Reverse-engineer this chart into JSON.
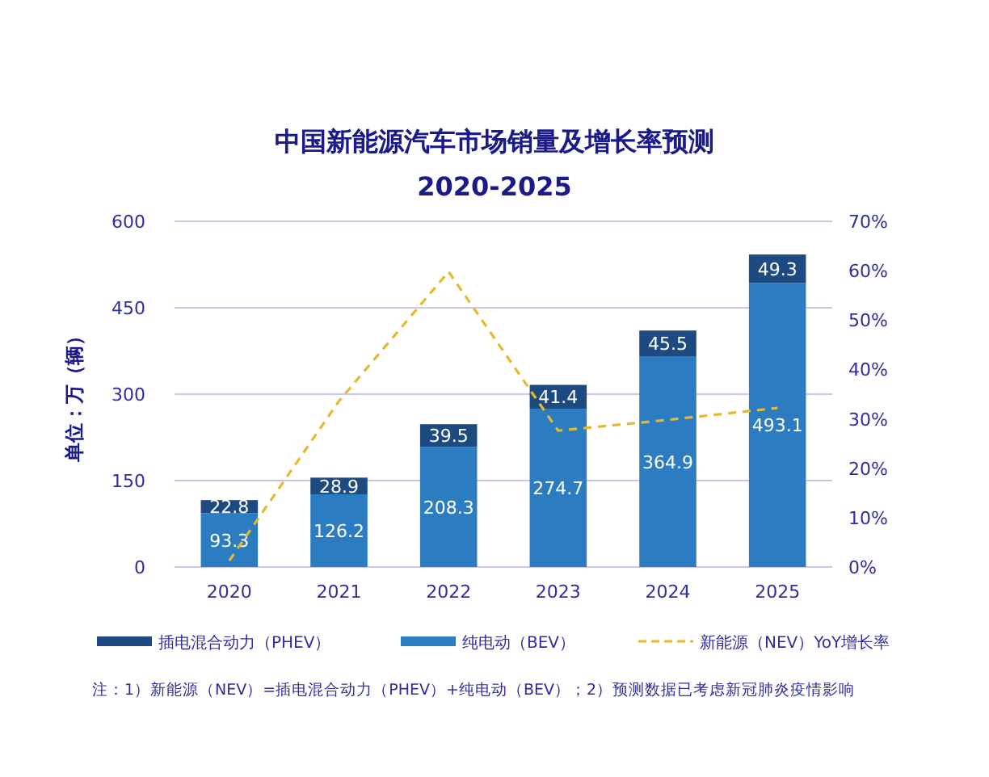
{
  "chart_data": {
    "type": "bar",
    "stacked": true,
    "title": "中国新能源汽车市场销量及增长率预测",
    "subtitle": "2020-2025",
    "ylabel": "单位：万（辆）",
    "categories": [
      "2020",
      "2021",
      "2022",
      "2023",
      "2024",
      "2025"
    ],
    "series": [
      {
        "name": "纯电动（BEV）",
        "color": "#2b7cc1",
        "values": [
          93.3,
          126.2,
          208.3,
          274.7,
          364.9,
          493.1
        ],
        "value_labels": [
          "93.3",
          "126.2",
          "208.3",
          "274.7",
          "364.9",
          "493.1"
        ]
      },
      {
        "name": "插电混合动力（PHEV）",
        "color": "#1d4a80",
        "values": [
          22.8,
          28.9,
          39.5,
          41.4,
          45.5,
          49.3
        ],
        "value_labels": [
          "22.8",
          "28.9",
          "39.5",
          "41.4",
          "45.5",
          "49.3"
        ]
      },
      {
        "name": "新能源（NEV）YoY增长率",
        "type": "line",
        "axis": "y2",
        "color": "#e6b830",
        "line_style": "dashed",
        "values": [
          1.3,
          33.6,
          59.8,
          27.6,
          29.8,
          32.2
        ]
      }
    ],
    "ylim": [
      0,
      600
    ],
    "yticks": [
      0,
      150,
      300,
      450,
      600
    ],
    "y2lim": [
      0,
      70
    ],
    "y2ticks": [
      {
        "value": 0,
        "label": "0%"
      },
      {
        "value": 10,
        "label": "10%"
      },
      {
        "value": 20,
        "label": "20%"
      },
      {
        "value": 30,
        "label": "30%"
      },
      {
        "value": 40,
        "label": "40%"
      },
      {
        "value": 50,
        "label": "50%"
      },
      {
        "value": 60,
        "label": "60%"
      },
      {
        "value": 70,
        "label": "70%"
      }
    ],
    "grid": "y",
    "legend": "bottom",
    "annotations": [
      "注：1）新能源（NEV）=插电混合动力（PHEV）+纯电动（BEV）；2）预测数据已考虑新冠肺炎疫情影响"
    ]
  }
}
